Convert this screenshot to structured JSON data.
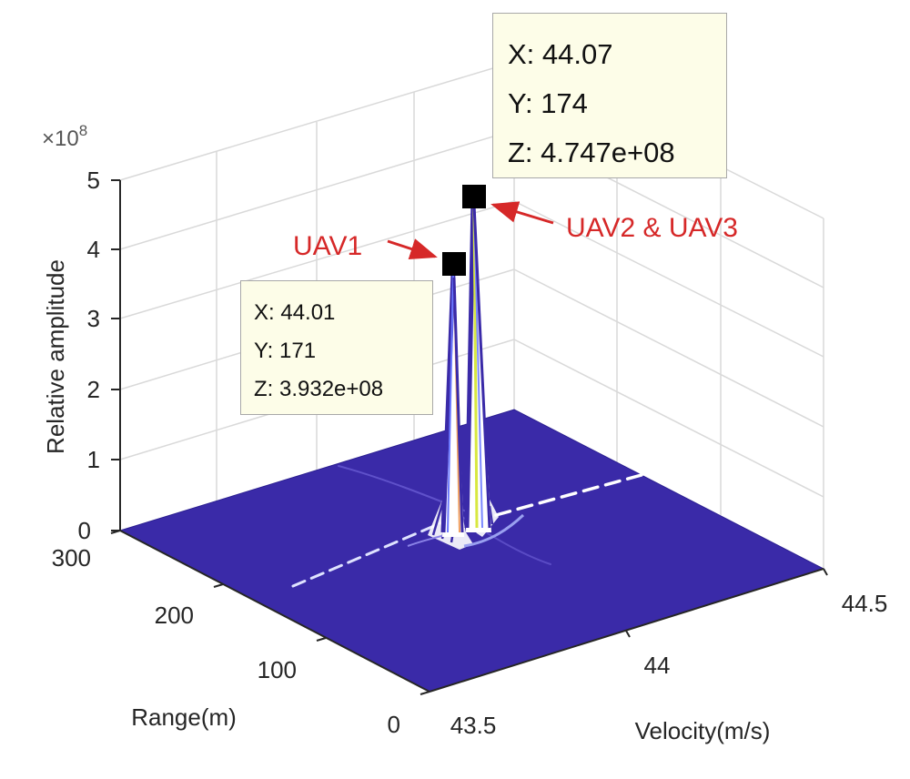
{
  "chart_data": {
    "type": "surface3d",
    "title": "",
    "xlabel": "Velocity(m/s)",
    "ylabel": "Range(m)",
    "zlabel": "Relative amplitude",
    "z_exponent_label": "×10",
    "z_exponent_power": "8",
    "xlim": [
      43.5,
      44.5
    ],
    "ylim": [
      0,
      300
    ],
    "zlim": [
      0,
      5
    ],
    "x_ticks": [
      "43.5",
      "44",
      "44.5"
    ],
    "y_ticks": [
      "0",
      "100",
      "200",
      "300"
    ],
    "z_ticks": [
      "0",
      "1",
      "2",
      "3",
      "4",
      "5"
    ],
    "peaks": [
      {
        "name": "UAV1",
        "x": 44.01,
        "y": 171,
        "z": 3.932
      },
      {
        "name": "UAV2 & UAV3",
        "x": 44.07,
        "y": 174,
        "z": 4.747
      }
    ],
    "surface_color": "#3a2aa8",
    "annotation_color": "#d62828"
  },
  "datatips": [
    {
      "id": "uav2-tip",
      "x": "X: 44.07",
      "y": "Y: 174",
      "z": "Z: 4.747e+08"
    },
    {
      "id": "uav1-tip",
      "x": "X: 44.01",
      "y": "Y: 171",
      "z": "Z: 3.932e+08"
    }
  ]
}
